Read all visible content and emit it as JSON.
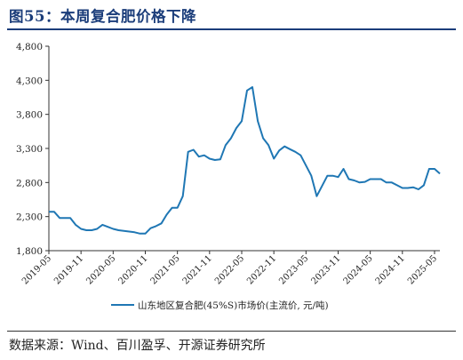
{
  "figure": {
    "title": "图55：本周复合肥价格下降",
    "source": "数据来源：Wind、百川盈孚、开源证券研究所"
  },
  "colors": {
    "line": "#1f77b4",
    "title": "#1b3d7a",
    "axis": "#333333"
  },
  "chart_data": {
    "type": "line",
    "title": "",
    "xlabel": "",
    "ylabel": "",
    "ylim": [
      1800,
      4800
    ],
    "y_ticks": [
      1800,
      2300,
      2800,
      3300,
      3800,
      4300,
      4800
    ],
    "y_tick_labels": [
      "1,800",
      "2,300",
      "2,800",
      "3,300",
      "3,800",
      "4,300",
      "4,800"
    ],
    "x_tick_labels": [
      "2019-05",
      "2019-11",
      "2020-05",
      "2020-11",
      "2021-05",
      "2021-11",
      "2022-05",
      "2022-11",
      "2023-05",
      "2023-11",
      "2024-05",
      "2024-11",
      "2025-05"
    ],
    "xlim": [
      "2019-05",
      "2025-06"
    ],
    "grid": false,
    "legend_position": "bottom-center",
    "series": [
      {
        "name": "山东地区复合肥(45%S)市场价(主流价, 元/吨)",
        "x": [
          "2019-05",
          "2019-06",
          "2019-07",
          "2019-08",
          "2019-09",
          "2019-10",
          "2019-11",
          "2019-12",
          "2020-01",
          "2020-02",
          "2020-03",
          "2020-04",
          "2020-05",
          "2020-06",
          "2020-07",
          "2020-08",
          "2020-09",
          "2020-10",
          "2020-11",
          "2020-12",
          "2021-01",
          "2021-02",
          "2021-03",
          "2021-04",
          "2021-05",
          "2021-06",
          "2021-07",
          "2021-08",
          "2021-09",
          "2021-10",
          "2021-11",
          "2021-12",
          "2022-01",
          "2022-02",
          "2022-03",
          "2022-04",
          "2022-05",
          "2022-06",
          "2022-07",
          "2022-08",
          "2022-09",
          "2022-10",
          "2022-11",
          "2022-12",
          "2023-01",
          "2023-02",
          "2023-03",
          "2023-04",
          "2023-05",
          "2023-06",
          "2023-07",
          "2023-08",
          "2023-09",
          "2023-10",
          "2023-11",
          "2023-12",
          "2024-01",
          "2024-02",
          "2024-03",
          "2024-04",
          "2024-05",
          "2024-06",
          "2024-07",
          "2024-08",
          "2024-09",
          "2024-10",
          "2024-11",
          "2024-12",
          "2025-01",
          "2025-02",
          "2025-03",
          "2025-04",
          "2025-05",
          "2025-06"
        ],
        "values": [
          2370,
          2370,
          2280,
          2280,
          2280,
          2180,
          2120,
          2100,
          2100,
          2120,
          2180,
          2150,
          2120,
          2100,
          2090,
          2080,
          2070,
          2050,
          2050,
          2130,
          2160,
          2200,
          2330,
          2430,
          2430,
          2600,
          3250,
          3280,
          3180,
          3200,
          3150,
          3130,
          3140,
          3350,
          3450,
          3600,
          3700,
          4150,
          4200,
          3700,
          3450,
          3350,
          3150,
          3270,
          3330,
          3290,
          3250,
          3200,
          3050,
          2900,
          2600,
          2750,
          2900,
          2900,
          2880,
          3000,
          2850,
          2830,
          2800,
          2810,
          2850,
          2850,
          2850,
          2800,
          2800,
          2760,
          2720,
          2720,
          2730,
          2700,
          2760,
          3000,
          3000,
          2930
        ]
      }
    ]
  }
}
